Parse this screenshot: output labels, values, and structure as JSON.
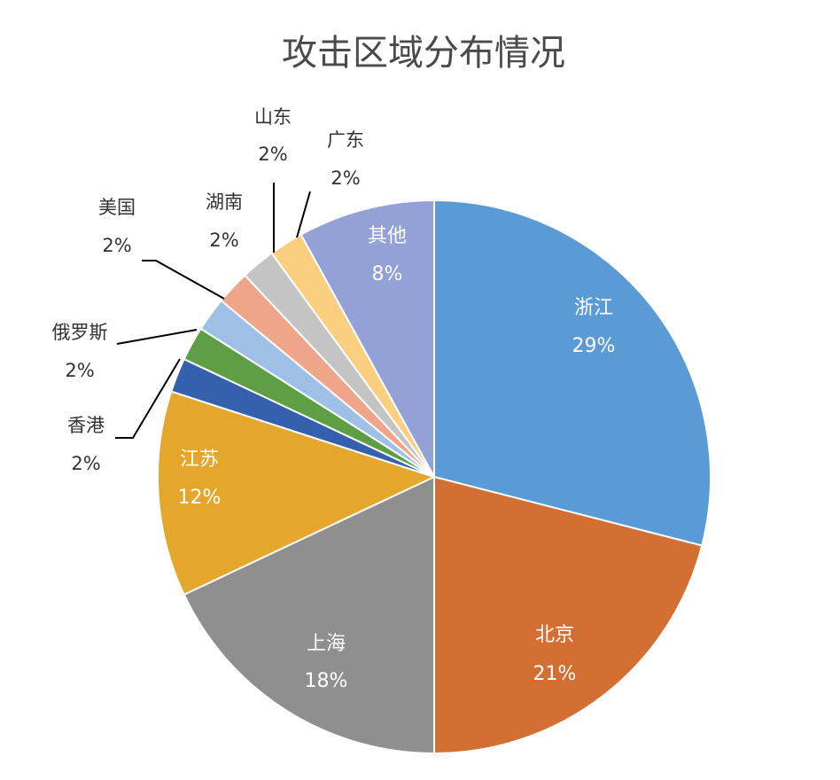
{
  "chart_data": {
    "type": "pie",
    "title": "攻击区域分布情况",
    "slices": [
      {
        "label": "浙江",
        "value": 29,
        "value_label": "29%",
        "color": "#5b9bd5"
      },
      {
        "label": "北京",
        "value": 21,
        "value_label": "21%",
        "color": "#d46f34"
      },
      {
        "label": "上海",
        "value": 18,
        "value_label": "18%",
        "color": "#8f8f8f"
      },
      {
        "label": "江苏",
        "value": 12,
        "value_label": "12%",
        "color": "#e4a72c"
      },
      {
        "label": "香港",
        "value": 2,
        "value_label": "2%",
        "color": "#3560ad"
      },
      {
        "label": "俄罗斯",
        "value": 2,
        "value_label": "2%",
        "color": "#5e9e44"
      },
      {
        "label": "美国",
        "value": 2,
        "value_label": "2%",
        "color": "#9fc0e6"
      },
      {
        "label": "湖南",
        "value": 2,
        "value_label": "2%",
        "color": "#eea58a"
      },
      {
        "label": "山东",
        "value": 2,
        "value_label": "2%",
        "color": "#c4c4c4"
      },
      {
        "label": "广东",
        "value": 2,
        "value_label": "2%",
        "color": "#fbcf80"
      },
      {
        "label": "其他",
        "value": 8,
        "value_label": "8%",
        "color": "#94a1d7"
      }
    ],
    "label_placement": "inside for large slices, outside with leader lines for small slices",
    "legend": "none"
  }
}
